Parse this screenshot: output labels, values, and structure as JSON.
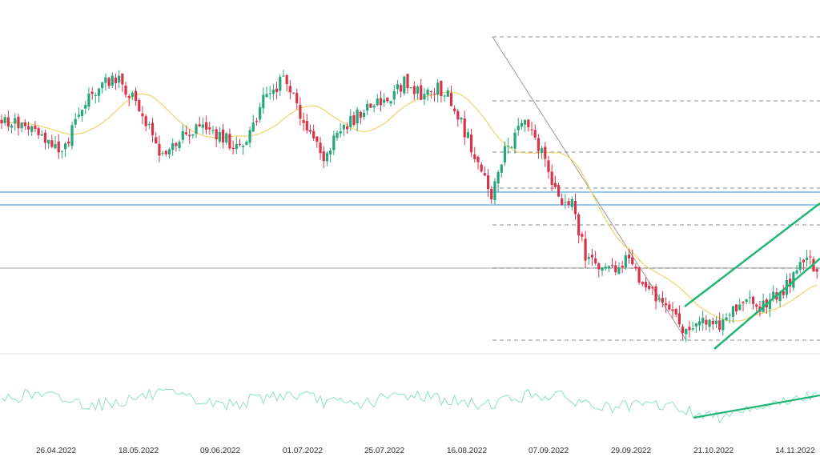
{
  "chart_data": {
    "type": "candlestick",
    "x_tick_labels": [
      "26.04.2022",
      "18.05.2022",
      "09.06.2022",
      "01.07.2022",
      "25.07.2022",
      "16.08.2022",
      "07.09.2022",
      "29.09.2022",
      "21.10.2022",
      "14.11.2022"
    ],
    "grid": false,
    "colors": {
      "up": "#26a67a",
      "down": "#d9334a",
      "moving_average": "#f0d36a",
      "oscillator": "#8fe0c0",
      "trendline": "#22b573",
      "horizontal_levels": "#5aaaf0",
      "fib_levels": "#666666",
      "diagonal": "#999999",
      "mid_line": "#888888"
    },
    "moving_average_period": 20,
    "candles": [],
    "oscillator": []
  }
}
